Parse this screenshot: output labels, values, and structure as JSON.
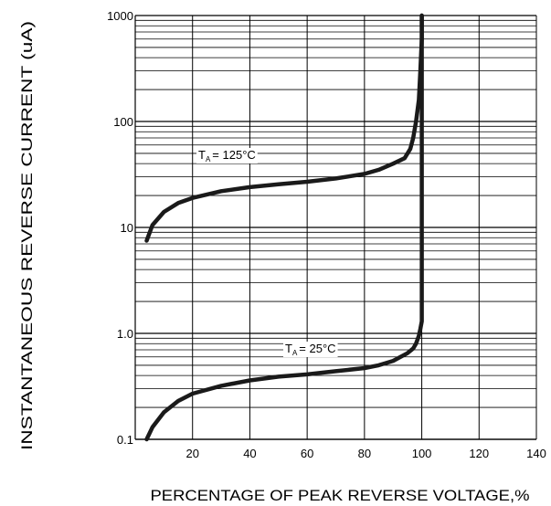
{
  "chart_data": {
    "type": "line",
    "title": "",
    "xlabel": "PERCENTAGE OF PEAK REVERSE VOLTAGE,%",
    "ylabel": "INSTANTANEOUS REVERSE CURRENT (uA)",
    "xlim": [
      0,
      140
    ],
    "ylim": [
      0.1,
      1000
    ],
    "yscale": "log",
    "grid": true,
    "xticks": [
      20,
      40,
      60,
      80,
      100,
      120,
      140
    ],
    "xtick_labels": [
      "20",
      "40",
      "60",
      "80",
      "100",
      "120",
      "140"
    ],
    "yticks": [
      0.1,
      1,
      10,
      100,
      1000
    ],
    "ytick_labels": [
      "0.1",
      "1.0",
      "10",
      "100",
      "1000"
    ],
    "series": [
      {
        "name": "TA = 125°C",
        "x": [
          4,
          6,
          10,
          15,
          20,
          30,
          40,
          50,
          60,
          70,
          80,
          85,
          90,
          94,
          96,
          97,
          98,
          99,
          99.5,
          100,
          100
        ],
        "y": [
          7.5,
          10.5,
          14,
          17,
          19,
          22,
          24,
          25.5,
          27,
          29,
          32,
          35,
          40,
          45,
          55,
          70,
          100,
          160,
          300,
          600,
          1000
        ]
      },
      {
        "name": "TA = 25°C",
        "x": [
          4,
          6,
          10,
          15,
          20,
          30,
          40,
          50,
          60,
          70,
          80,
          85,
          90,
          95,
          97,
          98,
          99,
          99.5,
          100,
          100,
          100
        ],
        "y": [
          0.1,
          0.13,
          0.18,
          0.23,
          0.27,
          0.32,
          0.36,
          0.39,
          0.41,
          0.44,
          0.47,
          0.5,
          0.55,
          0.65,
          0.72,
          0.8,
          0.95,
          1.1,
          1.3,
          30,
          1000
        ]
      }
    ],
    "annotations": [
      {
        "main": "T",
        "sub": "A",
        "rest": "= 125°C",
        "series": 0
      },
      {
        "main": "T",
        "sub": "A",
        "rest": "= 25°C",
        "series": 1
      }
    ]
  }
}
